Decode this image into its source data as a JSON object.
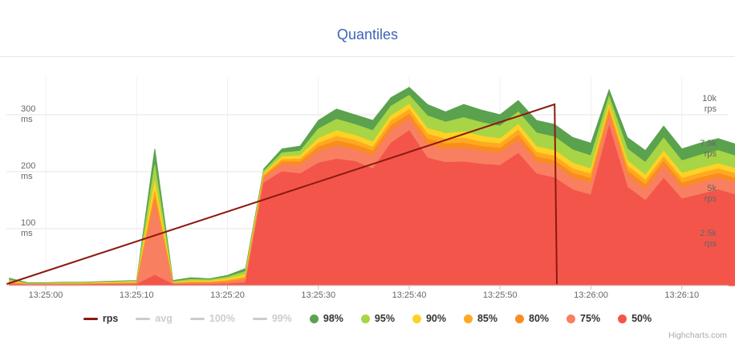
{
  "title": "Quantiles",
  "credit": "Highcharts.com",
  "colors": {
    "title": "#4063b8",
    "grid_h": "#e6e6e6",
    "grid_v": "#f0f0f0",
    "axis_line": "#d6d6d6",
    "tick_mark": "#c6c6c6",
    "axis_label": "#666666",
    "legend_text": "#333333",
    "legend_disabled": "#cccccc",
    "credit": "#aaaaaa",
    "rps_line": "#8b1a0f"
  },
  "legend": [
    {
      "label": "rps",
      "marker": "line",
      "color": "#8b1a0f",
      "disabled": false
    },
    {
      "label": "avg",
      "marker": "line",
      "color": "#cccccc",
      "disabled": true
    },
    {
      "label": "100%",
      "marker": "line",
      "color": "#cccccc",
      "disabled": true
    },
    {
      "label": "99%",
      "marker": "line",
      "color": "#cccccc",
      "disabled": true
    },
    {
      "label": "98%",
      "marker": "circle",
      "color": "#5ba24f",
      "disabled": false
    },
    {
      "label": "95%",
      "marker": "circle",
      "color": "#a8d545",
      "disabled": false
    },
    {
      "label": "90%",
      "marker": "circle",
      "color": "#fdd225",
      "disabled": false
    },
    {
      "label": "85%",
      "marker": "circle",
      "color": "#ffa822",
      "disabled": false
    },
    {
      "label": "80%",
      "marker": "circle",
      "color": "#f98d1e",
      "disabled": false
    },
    {
      "label": "75%",
      "marker": "circle",
      "color": "#f97f61",
      "disabled": false
    },
    {
      "label": "50%",
      "marker": "circle",
      "color": "#f4554a",
      "disabled": false
    }
  ],
  "chart_data": {
    "type": "area",
    "title": "Quantiles",
    "legend_position": "bottom",
    "grid": true,
    "x_axis": {
      "type": "time",
      "time_start": "13:24:56",
      "time_step_seconds": 2,
      "tick_labels": [
        {
          "label": "13:25:00",
          "t": 4
        },
        {
          "label": "13:25:10",
          "t": 14
        },
        {
          "label": "13:25:20",
          "t": 24
        },
        {
          "label": "13:25:30",
          "t": 34
        },
        {
          "label": "13:25:40",
          "t": 44
        },
        {
          "label": "13:25:50",
          "t": 54
        },
        {
          "label": "13:26:00",
          "t": 64
        },
        {
          "label": "13:26:10",
          "t": 74
        }
      ]
    },
    "left_axis": {
      "unit": "ms",
      "ticks": [
        {
          "value": 300,
          "label": "300",
          "unit": "ms"
        },
        {
          "value": 200,
          "label": "200",
          "unit": "ms"
        },
        {
          "value": 100,
          "label": "100",
          "unit": "ms"
        }
      ],
      "range": [
        0,
        366
      ]
    },
    "right_axis": {
      "unit": "rps",
      "ticks": [
        {
          "value": 10000,
          "label": "10k",
          "unit": "rps"
        },
        {
          "value": 7500,
          "label": "7.5k",
          "unit": "rps"
        },
        {
          "value": 5000,
          "label": "5k",
          "unit": "rps"
        },
        {
          "value": 2500,
          "label": "2.5k",
          "unit": "rps"
        }
      ],
      "range": [
        0,
        11600
      ]
    },
    "hidden_series": [
      "avg",
      "100%",
      "99%"
    ],
    "series": [
      {
        "name": "98%",
        "type": "area",
        "axis": "left",
        "unit": "ms",
        "color": "#5ba24f",
        "values": [
          13,
          5,
          5,
          6,
          6,
          7,
          8,
          9,
          240,
          9,
          14,
          12,
          18,
          30,
          205,
          240,
          245,
          290,
          310,
          300,
          290,
          330,
          348,
          318,
          305,
          318,
          308,
          300,
          325,
          290,
          283,
          260,
          250,
          344,
          260,
          237,
          280,
          240,
          250,
          258,
          248
        ]
      },
      {
        "name": "95%",
        "type": "area",
        "axis": "left",
        "unit": "ms",
        "color": "#a8d545",
        "values": [
          10,
          4,
          4,
          5,
          5,
          6,
          7,
          8,
          212,
          7,
          11,
          10,
          15,
          25,
          201,
          233,
          236,
          275,
          292,
          283,
          272,
          315,
          334,
          298,
          287,
          295,
          286,
          280,
          305,
          268,
          261,
          238,
          228,
          332,
          240,
          216,
          259,
          219,
          229,
          237,
          227
        ]
      },
      {
        "name": "90%",
        "type": "area",
        "axis": "left",
        "unit": "ms",
        "color": "#fdd225",
        "values": [
          8,
          3,
          3,
          4,
          4,
          5,
          5,
          6,
          184,
          5,
          8,
          8,
          12,
          19,
          197,
          226,
          228,
          258,
          272,
          264,
          252,
          298,
          318,
          276,
          267,
          270,
          262,
          258,
          283,
          244,
          237,
          215,
          205,
          318,
          219,
          194,
          236,
          197,
          206,
          214,
          205
        ]
      },
      {
        "name": "85%",
        "type": "area",
        "axis": "left",
        "unit": "ms",
        "color": "#ffa822",
        "values": [
          6,
          3,
          3,
          3,
          3,
          4,
          4,
          5,
          165,
          4,
          6,
          6,
          9,
          15,
          194,
          221,
          222,
          250,
          262,
          255,
          243,
          289,
          309,
          266,
          257,
          259,
          252,
          249,
          273,
          234,
          227,
          205,
          196,
          311,
          210,
          185,
          226,
          188,
          197,
          205,
          196
        ]
      },
      {
        "name": "80%",
        "type": "area",
        "axis": "left",
        "unit": "ms",
        "color": "#f98d1e",
        "values": [
          5,
          2,
          2,
          3,
          3,
          3,
          4,
          4,
          155,
          4,
          5,
          5,
          7,
          12,
          191,
          217,
          217,
          243,
          254,
          247,
          236,
          281,
          301,
          257,
          249,
          250,
          244,
          241,
          264,
          226,
          219,
          197,
          188,
          304,
          202,
          177,
          218,
          180,
          189,
          197,
          188
        ]
      },
      {
        "name": "75%",
        "type": "area",
        "axis": "left",
        "unit": "ms",
        "color": "#f97f61",
        "values": [
          4,
          2,
          2,
          2,
          2,
          3,
          3,
          3,
          146,
          3,
          4,
          4,
          6,
          10,
          188,
          212,
          211,
          235,
          245,
          239,
          228,
          272,
          293,
          248,
          240,
          241,
          236,
          233,
          255,
          218,
          211,
          189,
          180,
          297,
          194,
          169,
          210,
          172,
          181,
          189,
          180
        ]
      },
      {
        "name": "50%",
        "type": "area",
        "axis": "left",
        "unit": "ms",
        "color": "#f4554a",
        "values": [
          2,
          1,
          1,
          1,
          1,
          2,
          2,
          2,
          18,
          2,
          2,
          2,
          3,
          5,
          180,
          200,
          196,
          215,
          222,
          218,
          205,
          250,
          272,
          224,
          216,
          217,
          213,
          211,
          232,
          196,
          189,
          168,
          159,
          280,
          173,
          149,
          188,
          152,
          160,
          168,
          159
        ]
      },
      {
        "name": "rps",
        "type": "line",
        "axis": "right",
        "unit": "rps",
        "color": "#8b1a0f",
        "points": [
          [
            -0.3,
            0
          ],
          [
            60,
            10000
          ],
          [
            60.25,
            0
          ]
        ]
      }
    ]
  }
}
